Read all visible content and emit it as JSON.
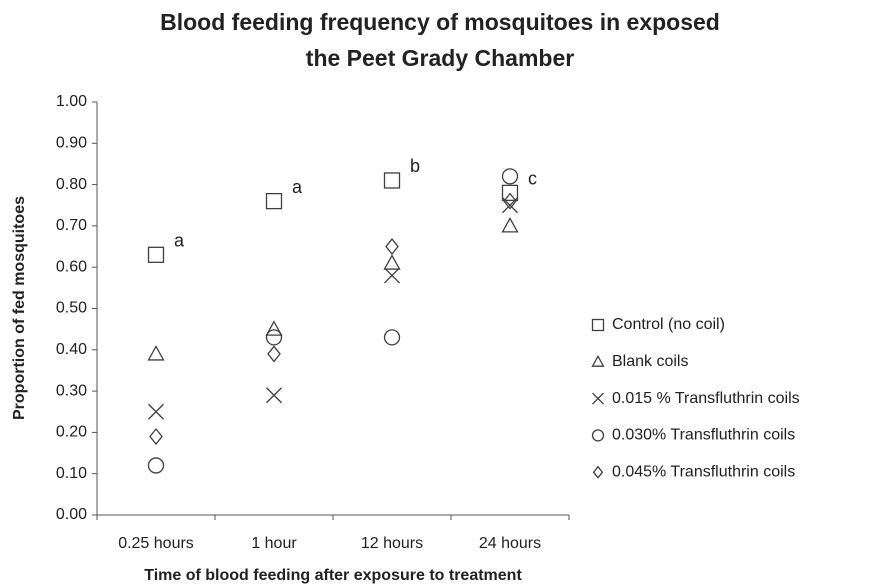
{
  "chart_data": {
    "type": "scatter",
    "title": [
      "Blood feeding frequency of mosquitoes in exposed",
      "the Peet Grady Chamber"
    ],
    "x_label": "Time of blood feeding after exposure to treatment",
    "y_label": "Proportion of fed mosquitoes",
    "categories": [
      "0.25 hours",
      "1 hour",
      "12 hours",
      "24 hours"
    ],
    "series": [
      {
        "name": "Control (no coil)",
        "marker": "square",
        "color": "#404040",
        "values": [
          0.63,
          0.76,
          0.81,
          0.78
        ]
      },
      {
        "name": "Blank coils",
        "marker": "triangle",
        "color": "#404040",
        "values": [
          0.39,
          0.45,
          0.61,
          0.7
        ]
      },
      {
        "name": "0.015 % Transfluthrin coils",
        "marker": "x",
        "color": "#404040",
        "values": [
          0.25,
          0.29,
          0.58,
          0.75
        ]
      },
      {
        "name": "0.030% Transfluthrin coils",
        "marker": "circle",
        "color": "#404040",
        "values": [
          0.12,
          0.43,
          0.43,
          0.82
        ]
      },
      {
        "name": "0.045% Transfluthrin coils",
        "marker": "diamond",
        "color": "#404040",
        "values": [
          0.19,
          0.39,
          0.65,
          0.76
        ]
      }
    ],
    "annotations": [
      "a",
      "a",
      "b",
      "c"
    ],
    "ylim": [
      0,
      1
    ],
    "yticks": [
      {
        "value": 0,
        "label": "0.00"
      },
      {
        "value": 0.1,
        "label": "0.10"
      },
      {
        "value": 0.2,
        "label": "0.20"
      },
      {
        "value": 0.3,
        "label": "0.30"
      },
      {
        "value": 0.4,
        "label": "0.40"
      },
      {
        "value": 0.5,
        "label": "0.50"
      },
      {
        "value": 0.6,
        "label": "0.60"
      },
      {
        "value": 0.7,
        "label": "0.70"
      },
      {
        "value": 0.8,
        "label": "0.80"
      },
      {
        "value": 0.9,
        "label": "0.90"
      },
      {
        "value": 1,
        "label": "1.00"
      }
    ],
    "grid": false,
    "legend": "right"
  }
}
